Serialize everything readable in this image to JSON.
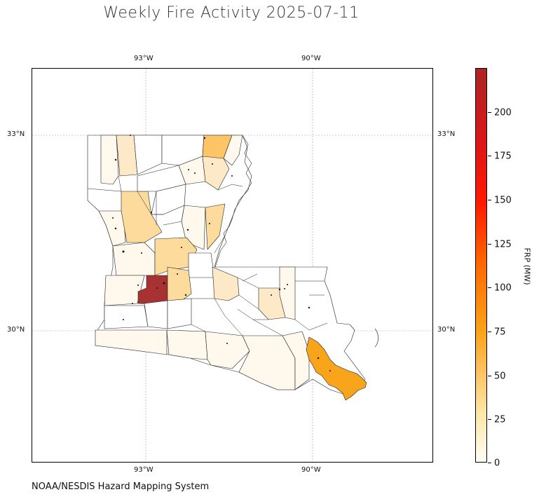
{
  "title": "Weekly Fire Activity 2025-07-11",
  "credit": "NOAA/NESDIS Hazard Mapping System",
  "map": {
    "lon_labels": [
      "93°W",
      "90°W"
    ],
    "lat_labels": [
      "33°N",
      "30°N"
    ],
    "gridlines": true
  },
  "colorbar": {
    "label": "FRP (MW)",
    "ticks": [
      "0",
      "25",
      "50",
      "75",
      "100",
      "125",
      "150",
      "175",
      "200"
    ],
    "colors": [
      "#fffdf5",
      "#fee8a8",
      "#fdc565",
      "#fca318",
      "#fe6a00",
      "#ff1a00",
      "#ad2424"
    ]
  },
  "parish_fill_colors": {
    "none": "#ffffff",
    "very_low": "#fff8ec",
    "low": "#fde9c8",
    "medium_low": "#fddb9c",
    "medium": "#fdc565",
    "high": "#f9a51c",
    "very_high": "#a83232"
  }
}
